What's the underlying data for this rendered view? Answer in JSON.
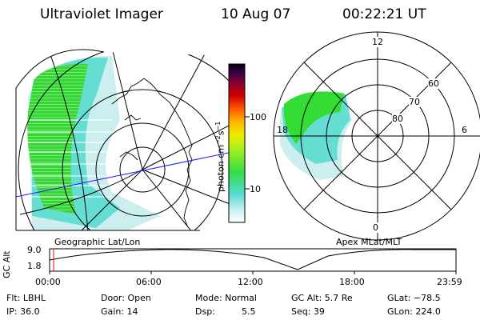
{
  "header": {
    "instrument": "Ultraviolet Imager",
    "date": "10 Aug 07",
    "time": "00:22:21 UT"
  },
  "colorbar": {
    "unit_label": "photon cm",
    "unit_exp1": "−2",
    "unit_mid": "s",
    "unit_exp2": "−1",
    "tick_100": "100",
    "tick_10": "10"
  },
  "geo_panel": {
    "label": "Geographic Lat/Lon"
  },
  "polar_panel": {
    "label": "Apex MLat/MLT",
    "mlt_12": "12",
    "mlt_6": "6",
    "mlt_18": "18",
    "mlt_0": "0",
    "lat_60": "60",
    "lat_70": "70",
    "lat_80": "80"
  },
  "altitude_panel": {
    "axis_label": "GC Alt",
    "tick_high": "9.0",
    "tick_low": "1.8",
    "time_ticks": [
      "00:00",
      "06:00",
      "12:00",
      "18:00",
      "23:59"
    ]
  },
  "status": {
    "flt": "Flt: LBHL",
    "ip": "IP: 36.0",
    "door": "Door: Open",
    "gain": "Gain: 14",
    "mode": "Mode: Normal",
    "dsp_label": "Dsp:",
    "dsp_value": "5.5",
    "gc_alt": "GC Alt: 5.7 Re",
    "seq": "Seq: 39",
    "glat": "GLat: −78.5",
    "glon": "GLon: 224.0"
  },
  "colors": {
    "aurora_green": "#33dd33",
    "aurora_cyan": "#66e0d8",
    "aurora_pale": "#cfeeee",
    "grid": "#000000",
    "orbit_line": "#1a1aff",
    "time_marker": "#ff0000"
  }
}
